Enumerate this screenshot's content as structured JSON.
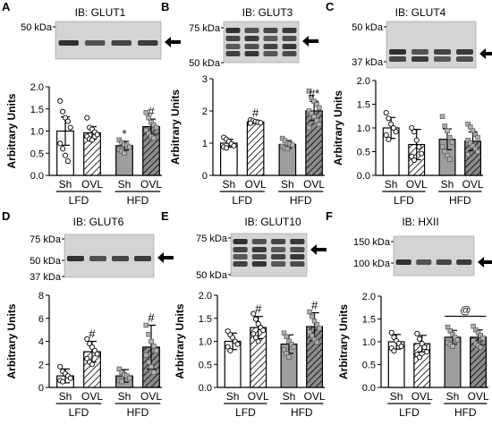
{
  "colors": {
    "bar_fill": [
      "#ffffff",
      "#ffffff",
      "#9e9e9e",
      "#9e9e9e"
    ],
    "hatch_light_bg": "#ffffff",
    "hatch_dark_bg": "#8c8c8c",
    "ink": "#000000",
    "point_fill": "#ffffff"
  },
  "chart_data": [
    {
      "letter": "A",
      "title": "IB: GLUT1",
      "type": "bar",
      "blot_labels": [
        "50 kDa"
      ],
      "ylabel": "Arbitrary Units",
      "ylim": [
        0,
        2.0
      ],
      "yticks": [
        "0.0",
        "0.5",
        "1.0",
        "1.5",
        "2.0"
      ],
      "categories": [
        "Sh",
        "OVL",
        "Sh",
        "OVL"
      ],
      "groups": [
        "LFD",
        "HFD"
      ],
      "values": [
        1.0,
        0.96,
        0.67,
        1.1
      ],
      "errors": [
        0.32,
        0.14,
        0.1,
        0.17
      ],
      "points": [
        [
          1.68,
          1.44,
          1.3,
          1.22,
          1.08,
          0.72,
          0.6,
          0.45,
          0.32
        ],
        [
          1.3,
          1.08,
          1.04,
          0.98,
          0.92,
          0.88,
          0.82,
          0.8
        ],
        [
          0.8,
          0.74,
          0.7,
          0.68,
          0.64,
          0.58,
          0.55,
          0.5
        ],
        [
          1.42,
          1.3,
          1.2,
          1.14,
          1.08,
          1.02,
          0.94,
          0.88,
          0.84
        ]
      ],
      "annotations": [
        "",
        "",
        "*",
        "#"
      ]
    },
    {
      "letter": "B",
      "title": "IB: GLUT3",
      "type": "bar",
      "blot_labels": [
        "75 kDa",
        "50 kDa"
      ],
      "ylabel": "Arbitrary Units",
      "ylim": [
        0,
        3
      ],
      "yticks": [
        "0",
        "1",
        "2",
        "3"
      ],
      "categories": [
        "Sh",
        "OVL",
        "Sh",
        "OVL"
      ],
      "groups": [
        "LFD",
        "HFD"
      ],
      "values": [
        1.0,
        1.66,
        0.96,
        2.0
      ],
      "errors": [
        0.12,
        0.05,
        0.12,
        0.3
      ],
      "points": [
        [
          1.18,
          1.12,
          1.05,
          0.98,
          0.92,
          0.88,
          0.85
        ],
        [
          1.72,
          1.69,
          1.67,
          1.65,
          1.63,
          1.62
        ],
        [
          1.15,
          1.08,
          1.0,
          0.98,
          0.94,
          0.9,
          0.85,
          0.82
        ],
        [
          2.62,
          2.42,
          2.3,
          2.2,
          2.1,
          2.0,
          1.92,
          1.82,
          1.7,
          1.58,
          1.48
        ]
      ],
      "annotations": [
        "",
        "#",
        "",
        "#*"
      ]
    },
    {
      "letter": "C",
      "title": "IB: GLUT4",
      "type": "bar",
      "blot_labels": [
        "50 kDa",
        "37 kDa"
      ],
      "ylabel": "Arbitrary Units",
      "ylim": [
        0,
        2.0
      ],
      "yticks": [
        "0.0",
        "0.5",
        "1.0",
        "1.5",
        "2.0"
      ],
      "categories": [
        "Sh",
        "OVL",
        "Sh",
        "OVL"
      ],
      "groups": [
        "LFD",
        "HFD"
      ],
      "values": [
        1.0,
        0.65,
        0.76,
        0.72
      ],
      "errors": [
        0.22,
        0.32,
        0.22,
        0.2
      ],
      "points": [
        [
          1.32,
          1.2,
          1.08,
          1.0,
          0.92,
          0.85,
          0.76
        ],
        [
          1.0,
          0.92,
          0.74,
          0.6,
          0.46,
          0.4,
          0.32
        ],
        [
          1.24,
          1.04,
          0.94,
          0.8,
          0.7,
          0.6,
          0.5,
          0.42,
          0.34
        ],
        [
          1.08,
          1.02,
          0.94,
          0.86,
          0.8,
          0.74,
          0.68,
          0.62,
          0.56,
          0.5,
          0.44
        ]
      ],
      "annotations": [
        "",
        "",
        "",
        ""
      ]
    },
    {
      "letter": "D",
      "title": "IB: GLUT6",
      "type": "bar",
      "blot_labels": [
        "75 kDa",
        "50 kDa",
        "37 kDa"
      ],
      "ylabel": "Arbitrary Units",
      "ylim": [
        0,
        8
      ],
      "yticks": [
        "0",
        "2",
        "4",
        "6",
        "8"
      ],
      "categories": [
        "Sh",
        "OVL",
        "Sh",
        "OVL"
      ],
      "groups": [
        "LFD",
        "HFD"
      ],
      "values": [
        1.0,
        3.1,
        1.0,
        3.5
      ],
      "errors": [
        0.6,
        0.9,
        0.55,
        1.9
      ],
      "points": [
        [
          1.8,
          1.4,
          1.2,
          1.0,
          0.8,
          0.6,
          0.5
        ],
        [
          4.2,
          3.8,
          3.5,
          3.2,
          2.9,
          2.5,
          2.2,
          2.0
        ],
        [
          1.6,
          1.3,
          1.1,
          1.0,
          0.8,
          0.6,
          0.5
        ],
        [
          5.4,
          4.6,
          4.0,
          3.6,
          3.2,
          2.8,
          2.2,
          1.8,
          1.3
        ]
      ],
      "annotations": [
        "",
        "#",
        "",
        "#"
      ]
    },
    {
      "letter": "E",
      "title": "IB: GLUT10",
      "type": "bar",
      "blot_labels": [
        "75 kDa",
        "50 kDa"
      ],
      "ylabel": "Arbitrary Units",
      "ylim": [
        0,
        2.0
      ],
      "yticks": [
        "0.0",
        "0.5",
        "1.0",
        "1.5",
        "2.0"
      ],
      "categories": [
        "Sh",
        "OVL",
        "Sh",
        "OVL"
      ],
      "groups": [
        "LFD",
        "HFD"
      ],
      "values": [
        1.0,
        1.3,
        0.94,
        1.32
      ],
      "errors": [
        0.18,
        0.24,
        0.2,
        0.3
      ],
      "points": [
        [
          1.22,
          1.14,
          1.08,
          1.0,
          0.94,
          0.88,
          0.8
        ],
        [
          1.6,
          1.48,
          1.38,
          1.3,
          1.24,
          1.16,
          1.08,
          1.0
        ],
        [
          1.18,
          1.1,
          1.0,
          0.94,
          0.88,
          0.82,
          0.74,
          0.66
        ],
        [
          1.64,
          1.54,
          1.44,
          1.36,
          1.28,
          1.2,
          1.12,
          1.04,
          0.98
        ]
      ],
      "annotations": [
        "",
        "#",
        "",
        "#"
      ]
    },
    {
      "letter": "F",
      "title": "IB: HXII",
      "type": "bar",
      "blot_labels": [
        "150 kDa",
        "100 kDa"
      ],
      "ylabel": "Arbitrary Units",
      "ylim": [
        0,
        2.0
      ],
      "yticks": [
        "0.0",
        "0.5",
        "1.0",
        "1.5",
        "2.0"
      ],
      "categories": [
        "Sh",
        "OVL",
        "Sh",
        "OVL"
      ],
      "groups": [
        "LFD",
        "HFD"
      ],
      "values": [
        1.0,
        0.96,
        1.1,
        1.1
      ],
      "errors": [
        0.16,
        0.18,
        0.15,
        0.16
      ],
      "points": [
        [
          1.2,
          1.1,
          1.02,
          0.96,
          0.9,
          0.86,
          0.8
        ],
        [
          1.18,
          1.06,
          0.96,
          0.88,
          0.78,
          0.72,
          0.66
        ],
        [
          1.32,
          1.24,
          1.16,
          1.1,
          1.04,
          0.98,
          0.94,
          0.9
        ],
        [
          1.34,
          1.26,
          1.2,
          1.14,
          1.08,
          1.02,
          0.96,
          0.92,
          0.88
        ]
      ],
      "annotations": [
        "",
        "",
        "",
        ""
      ],
      "bracket_label": "@"
    }
  ]
}
